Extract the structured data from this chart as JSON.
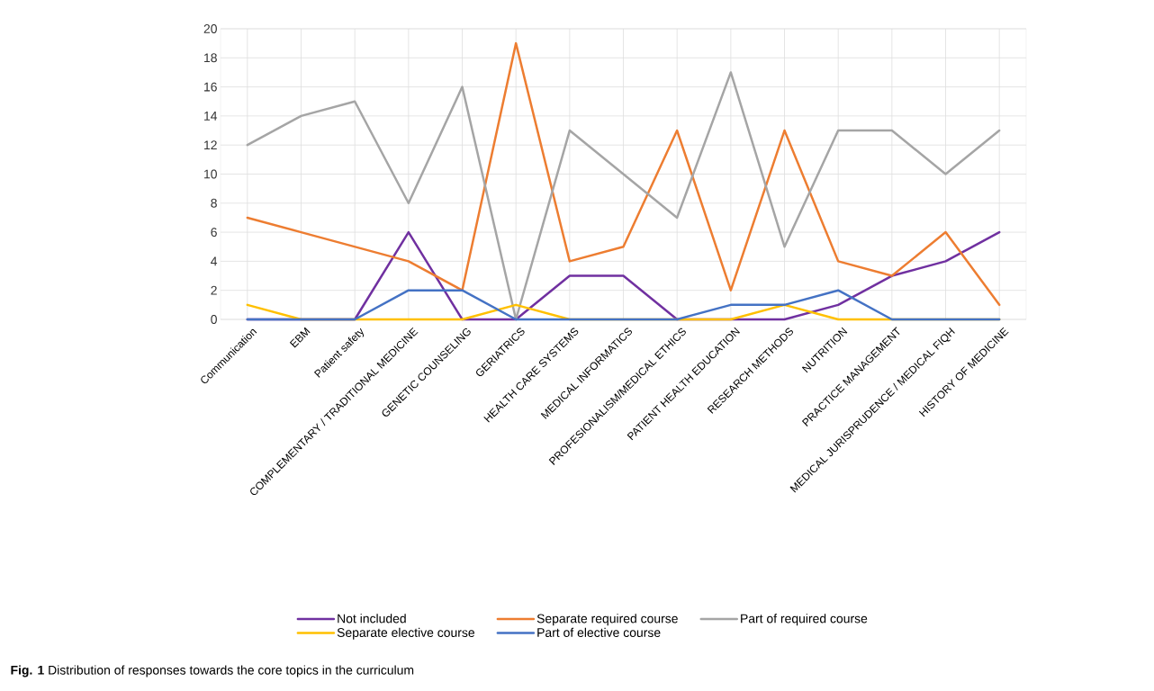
{
  "chart_data": {
    "type": "line",
    "categories": [
      "Communication",
      "EBM",
      "Patient safety",
      "COMPLEMENTARY / TRADITIONAL MEDICINE",
      "GENETIC COUNSELING",
      "GERIATRICS",
      "HEALTH CARE SYSTEMS",
      "MEDICAL INFORMATICS",
      "PROFESIONALISM/MEDICAL ETHICS",
      "PATIENT HEALTH EDUCATION",
      "RESEARCH METHODS",
      "NUTRITION",
      "PRACTICE MANAGEMENT",
      "MEDICAL  JURISPRUDENCE / MEDICAL FIQH",
      "HISTORY OF MEDICINE"
    ],
    "series": [
      {
        "name": "Not included",
        "color": "#7030a0",
        "values": [
          0,
          0,
          0,
          6,
          0,
          0,
          3,
          3,
          0,
          0,
          0,
          1,
          3,
          4,
          6
        ]
      },
      {
        "name": "Separate required course",
        "color": "#ed7d31",
        "values": [
          7,
          6,
          5,
          4,
          2,
          19,
          4,
          5,
          13,
          2,
          13,
          4,
          3,
          6,
          1
        ]
      },
      {
        "name": "Part of required course",
        "color": "#a5a5a5",
        "values": [
          12,
          14,
          15,
          8,
          16,
          0,
          13,
          10,
          7,
          17,
          5,
          13,
          13,
          10,
          13
        ]
      },
      {
        "name": "Separate elective course",
        "color": "#ffc000",
        "values": [
          1,
          0,
          0,
          0,
          0,
          1,
          0,
          0,
          0,
          0,
          1,
          0,
          0,
          0,
          0
        ]
      },
      {
        "name": "Part of elective course",
        "color": "#4472c4",
        "values": [
          0,
          0,
          0,
          2,
          2,
          0,
          0,
          0,
          0,
          1,
          1,
          2,
          0,
          0,
          0
        ]
      }
    ],
    "ylim": [
      0,
      20
    ],
    "yticks": [
      0,
      2,
      4,
      6,
      8,
      10,
      12,
      14,
      16,
      18,
      20
    ],
    "grid": true,
    "legend": "bottom",
    "marker": "none",
    "line_style": "solid",
    "annotations": [
      "**Fig. 1**  Distribution of responses towards the core topics in the curriculum"
    ]
  }
}
